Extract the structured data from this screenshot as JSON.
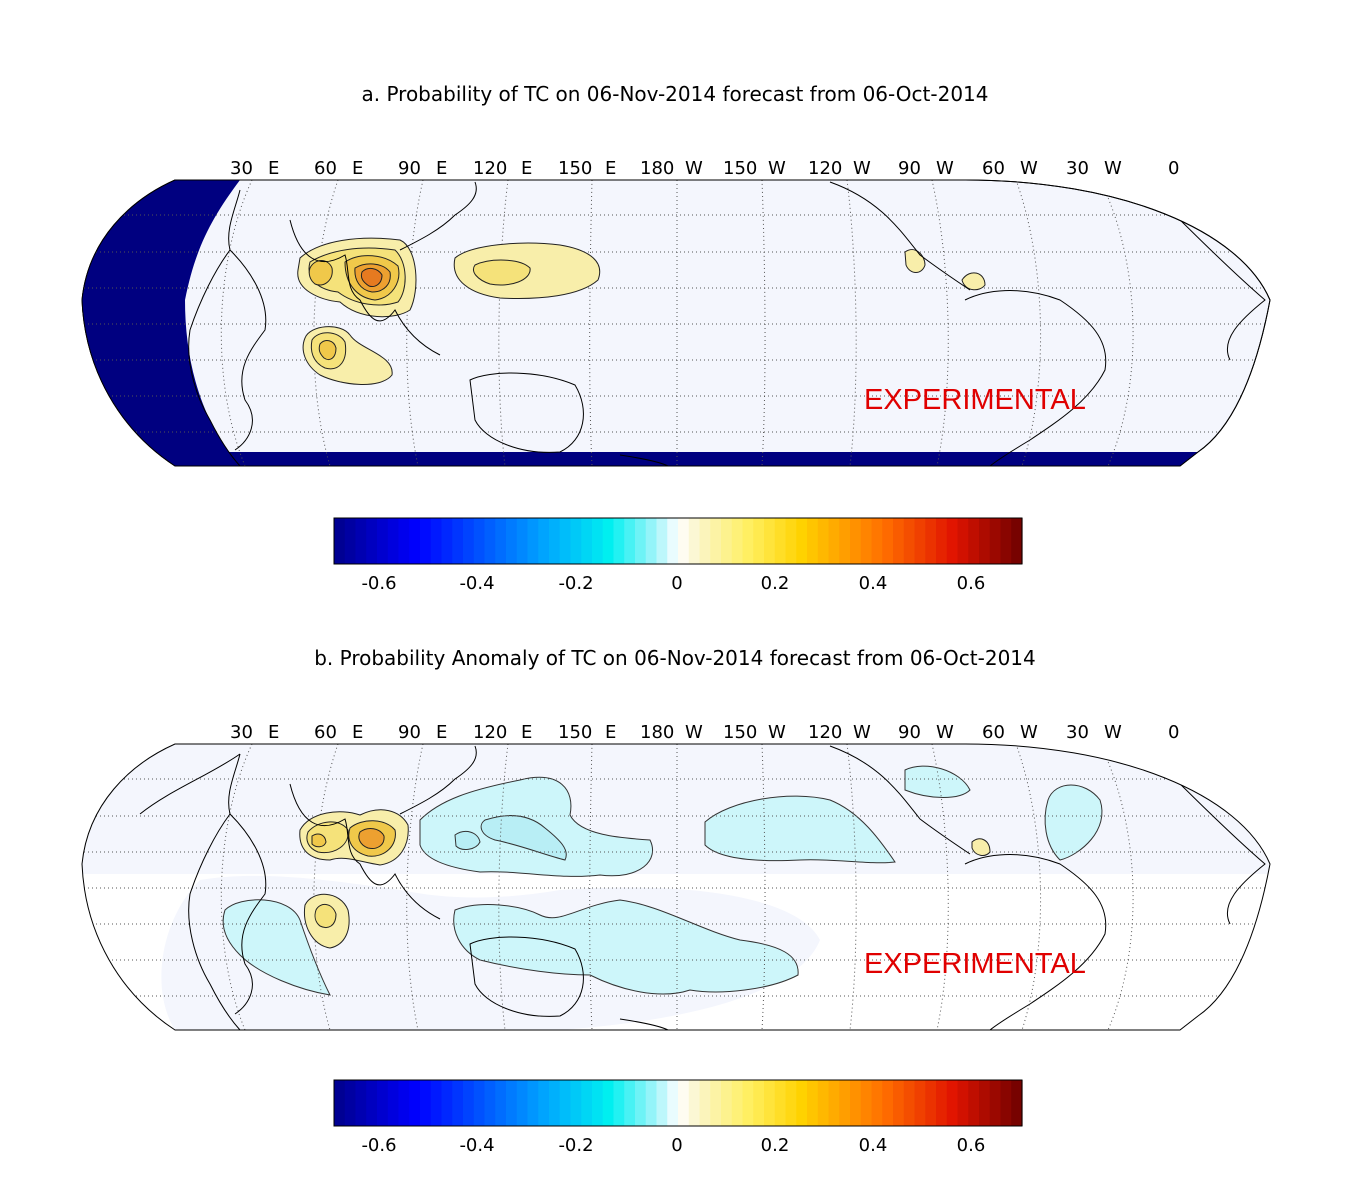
{
  "panels": [
    {
      "title": "a. Probability of TC on 06-Nov-2014 forecast from 06-Oct-2014",
      "lon_labels": [
        "30",
        "60",
        "90",
        "120",
        "150",
        "180",
        "150",
        "120",
        "90",
        "60",
        "30",
        "0"
      ],
      "lon_hemispheres": [
        "E",
        "E",
        "E",
        "E",
        "E",
        "W",
        "W",
        "W",
        "W",
        "W",
        "W",
        ""
      ],
      "stamp": "EXPERIMENTAL",
      "colorbar_ticks": [
        "-0.6",
        "-0.4",
        "-0.2",
        "0",
        "0.2",
        "0.4",
        "0.6"
      ]
    },
    {
      "title": "b. Probability Anomaly of TC on 06-Nov-2014 forecast from 06-Oct-2014",
      "lon_labels": [
        "30",
        "60",
        "90",
        "120",
        "150",
        "180",
        "150",
        "120",
        "90",
        "60",
        "30",
        "0"
      ],
      "lon_hemispheres": [
        "E",
        "E",
        "E",
        "E",
        "E",
        "W",
        "W",
        "W",
        "W",
        "W",
        "W",
        ""
      ],
      "stamp": "EXPERIMENTAL",
      "colorbar_ticks": [
        "-0.6",
        "-0.4",
        "-0.2",
        "0",
        "0.2",
        "0.4",
        "0.6"
      ]
    }
  ],
  "colorbar": {
    "min": -0.7,
    "max": 0.7,
    "colormap": "jet-diverging"
  },
  "colors": {
    "stamp": "#e00000",
    "missing_fill": "#000080",
    "background_fill": "#f4f6fd"
  }
}
